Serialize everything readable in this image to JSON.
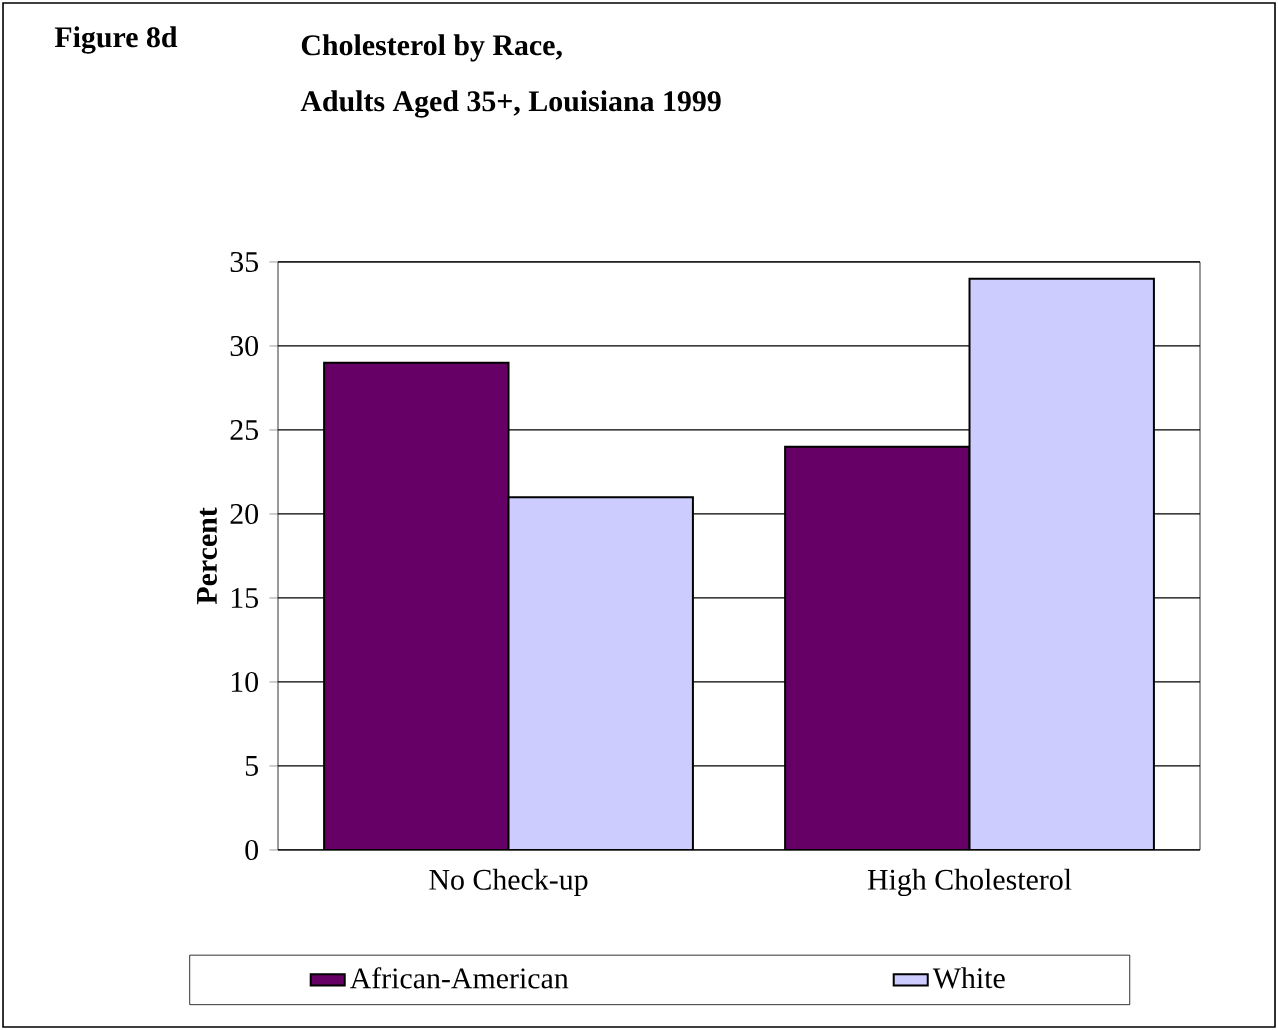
{
  "chart_data": {
    "type": "bar",
    "title": "Cholesterol by Race,",
    "subtitle": "Adults Aged 35+, Louisiana 1999",
    "annotations": [
      "Figure 8d"
    ],
    "ylabel": "Percent",
    "categories": [
      "No Check-up",
      "High Cholesterol"
    ],
    "series": [
      {
        "name": "African-American",
        "color": "#660066",
        "values": [
          29,
          24
        ]
      },
      {
        "name": "White",
        "color": "#ccccff",
        "values": [
          21,
          34
        ]
      }
    ],
    "ylim": [
      0,
      35
    ],
    "yticks": [
      0,
      5,
      10,
      15,
      20,
      25,
      30,
      35
    ],
    "grid": "y",
    "legend": "bottom"
  }
}
